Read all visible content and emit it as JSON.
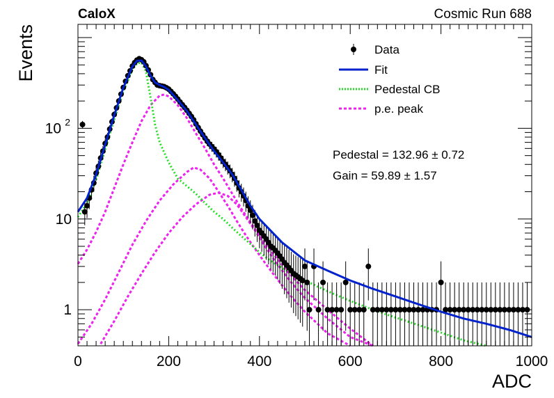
{
  "chart_data": {
    "type": "scatter",
    "experiment_label": "CaloX",
    "run_label": "Cosmic Run 688",
    "xlabel": "ADC",
    "ylabel": "Events",
    "xlim": [
      0,
      1000
    ],
    "ylim": [
      0.4,
      1400
    ],
    "yscale": "log",
    "x_ticks": [
      0,
      200,
      400,
      600,
      800,
      1000
    ],
    "x_tick_labels": [
      "0",
      "200",
      "400",
      "600",
      "800",
      "1000"
    ],
    "y_ticks": [
      1,
      10,
      100
    ],
    "y_tick_labels": [
      "1",
      "10",
      "10^2"
    ],
    "legend": {
      "placement": "top-right",
      "entries": [
        {
          "label": "Data",
          "style": "marker",
          "color": "#000000"
        },
        {
          "label": "Fit",
          "style": "line",
          "color": "#0022cc"
        },
        {
          "label": "Pedestal CB",
          "style": "dotted",
          "color": "#22dd22"
        },
        {
          "label": "p.e. peak",
          "style": "dashed",
          "color": "#ee22ee"
        }
      ]
    },
    "annotations": [
      {
        "text": "Pedestal = 132.96 ± 0.72"
      },
      {
        "text": "Gain = 59.89 ± 1.57"
      }
    ],
    "fit_params": {
      "pedestal": 132.96,
      "gain": 59.89
    },
    "data_points": [
      [
        10,
        110
      ],
      [
        15,
        12
      ],
      [
        20,
        14
      ],
      [
        25,
        17
      ],
      [
        30,
        21
      ],
      [
        35,
        25
      ],
      [
        40,
        32
      ],
      [
        45,
        38
      ],
      [
        50,
        47
      ],
      [
        55,
        56
      ],
      [
        60,
        68
      ],
      [
        65,
        80
      ],
      [
        70,
        98
      ],
      [
        75,
        118
      ],
      [
        80,
        142
      ],
      [
        85,
        168
      ],
      [
        90,
        200
      ],
      [
        95,
        238
      ],
      [
        100,
        282
      ],
      [
        105,
        330
      ],
      [
        110,
        380
      ],
      [
        115,
        430
      ],
      [
        120,
        485
      ],
      [
        125,
        530
      ],
      [
        130,
        565
      ],
      [
        135,
        585
      ],
      [
        140,
        570
      ],
      [
        145,
        540
      ],
      [
        150,
        490
      ],
      [
        155,
        440
      ],
      [
        160,
        390
      ],
      [
        165,
        345
      ],
      [
        170,
        320
      ],
      [
        175,
        300
      ],
      [
        180,
        295
      ],
      [
        185,
        292
      ],
      [
        190,
        288
      ],
      [
        195,
        280
      ],
      [
        200,
        270
      ],
      [
        205,
        255
      ],
      [
        210,
        240
      ],
      [
        215,
        225
      ],
      [
        220,
        210
      ],
      [
        225,
        195
      ],
      [
        230,
        182
      ],
      [
        235,
        170
      ],
      [
        240,
        158
      ],
      [
        245,
        146
      ],
      [
        250,
        135
      ],
      [
        255,
        124
      ],
      [
        260,
        112
      ],
      [
        265,
        102
      ],
      [
        270,
        93
      ],
      [
        275,
        85
      ],
      [
        280,
        78
      ],
      [
        285,
        72
      ],
      [
        290,
        67
      ],
      [
        295,
        63
      ],
      [
        300,
        59
      ],
      [
        305,
        55
      ],
      [
        310,
        51
      ],
      [
        315,
        47
      ],
      [
        320,
        43
      ],
      [
        325,
        40
      ],
      [
        330,
        37
      ],
      [
        335,
        34
      ],
      [
        340,
        31
      ],
      [
        345,
        28
      ],
      [
        350,
        25
      ],
      [
        355,
        22
      ],
      [
        360,
        20
      ],
      [
        365,
        18
      ],
      [
        370,
        16
      ],
      [
        375,
        14
      ],
      [
        380,
        12.5
      ],
      [
        385,
        11
      ],
      [
        390,
        9.5
      ],
      [
        395,
        8.5
      ],
      [
        400,
        7.5
      ],
      [
        405,
        7
      ],
      [
        410,
        6.5
      ],
      [
        415,
        6
      ],
      [
        420,
        5.5
      ],
      [
        425,
        5
      ],
      [
        430,
        4.8
      ],
      [
        435,
        4.5
      ],
      [
        440,
        4.2
      ],
      [
        445,
        3.9
      ],
      [
        450,
        3.6
      ],
      [
        455,
        3.3
      ],
      [
        460,
        3.1
      ],
      [
        465,
        2.9
      ],
      [
        470,
        2.7
      ],
      [
        475,
        2.5
      ],
      [
        480,
        2.4
      ],
      [
        485,
        2.3
      ],
      [
        490,
        2.2
      ],
      [
        495,
        2.1
      ],
      [
        500,
        3
      ],
      [
        505,
        2
      ],
      [
        510,
        1
      ],
      [
        520,
        3
      ],
      [
        530,
        1
      ],
      [
        540,
        2
      ],
      [
        550,
        1
      ],
      [
        560,
        1
      ],
      [
        570,
        1
      ],
      [
        580,
        1
      ],
      [
        590,
        2
      ],
      [
        600,
        1
      ],
      [
        610,
        1
      ],
      [
        620,
        1
      ],
      [
        630,
        1
      ],
      [
        640,
        3
      ],
      [
        650,
        1
      ],
      [
        660,
        1
      ],
      [
        670,
        1
      ],
      [
        680,
        1
      ],
      [
        690,
        1
      ],
      [
        700,
        1
      ],
      [
        710,
        1
      ],
      [
        720,
        1
      ],
      [
        730,
        1
      ],
      [
        740,
        1
      ],
      [
        750,
        1
      ],
      [
        760,
        1
      ],
      [
        770,
        1
      ],
      [
        780,
        1
      ],
      [
        790,
        1
      ],
      [
        800,
        2
      ],
      [
        810,
        1
      ],
      [
        820,
        1
      ],
      [
        830,
        1
      ],
      [
        840,
        1
      ],
      [
        850,
        1
      ],
      [
        860,
        1
      ],
      [
        870,
        1
      ],
      [
        880,
        1
      ],
      [
        890,
        1
      ],
      [
        900,
        1
      ],
      [
        910,
        1
      ],
      [
        920,
        1
      ],
      [
        930,
        1
      ],
      [
        940,
        1
      ],
      [
        950,
        1
      ],
      [
        960,
        1
      ],
      [
        970,
        1
      ],
      [
        980,
        1
      ],
      [
        990,
        1
      ]
    ],
    "fit_curve": [
      [
        0,
        12
      ],
      [
        20,
        17
      ],
      [
        40,
        31
      ],
      [
        60,
        66
      ],
      [
        80,
        140
      ],
      [
        100,
        280
      ],
      [
        120,
        480
      ],
      [
        130,
        555
      ],
      [
        140,
        560
      ],
      [
        150,
        480
      ],
      [
        160,
        380
      ],
      [
        170,
        320
      ],
      [
        180,
        300
      ],
      [
        190,
        285
      ],
      [
        200,
        265
      ],
      [
        220,
        205
      ],
      [
        240,
        155
      ],
      [
        260,
        110
      ],
      [
        280,
        78
      ],
      [
        300,
        56
      ],
      [
        320,
        42
      ],
      [
        340,
        31
      ],
      [
        360,
        21
      ],
      [
        380,
        14
      ],
      [
        400,
        10
      ],
      [
        450,
        5.5
      ],
      [
        500,
        3.5
      ],
      [
        550,
        2.7
      ],
      [
        600,
        2.1
      ],
      [
        650,
        1.7
      ],
      [
        700,
        1.4
      ],
      [
        750,
        1.15
      ],
      [
        800,
        0.95
      ],
      [
        850,
        0.8
      ],
      [
        900,
        0.7
      ],
      [
        950,
        0.6
      ],
      [
        1000,
        0.5
      ]
    ],
    "pedestal_cb": [
      [
        0,
        10.5
      ],
      [
        20,
        15
      ],
      [
        40,
        27
      ],
      [
        60,
        58
      ],
      [
        80,
        125
      ],
      [
        100,
        255
      ],
      [
        120,
        440
      ],
      [
        130,
        520
      ],
      [
        140,
        530
      ],
      [
        150,
        420
      ],
      [
        160,
        220
      ],
      [
        170,
        110
      ],
      [
        180,
        70
      ],
      [
        200,
        42
      ],
      [
        220,
        28
      ],
      [
        240,
        23
      ],
      [
        250,
        21
      ],
      [
        260,
        19
      ],
      [
        280,
        15
      ],
      [
        300,
        12
      ],
      [
        320,
        10
      ],
      [
        340,
        8
      ],
      [
        360,
        6.5
      ],
      [
        380,
        5.3
      ],
      [
        400,
        4.3
      ],
      [
        420,
        3.6
      ],
      [
        440,
        3.1
      ],
      [
        460,
        2.7
      ],
      [
        480,
        2.4
      ],
      [
        500,
        2.1
      ],
      [
        550,
        1.6
      ],
      [
        600,
        1.25
      ],
      [
        650,
        1.0
      ],
      [
        700,
        0.82
      ],
      [
        750,
        0.68
      ],
      [
        800,
        0.56
      ],
      [
        850,
        0.46
      ],
      [
        900,
        0.38
      ]
    ],
    "pe_peaks": [
      [
        [
          0,
          3.2
        ],
        [
          20,
          4.6
        ],
        [
          40,
          7.2
        ],
        [
          60,
          12
        ],
        [
          80,
          22
        ],
        [
          100,
          40
        ],
        [
          120,
          70
        ],
        [
          140,
          120
        ],
        [
          160,
          180
        ],
        [
          180,
          230
        ],
        [
          190,
          235
        ],
        [
          200,
          225
        ],
        [
          220,
          180
        ],
        [
          240,
          130
        ],
        [
          260,
          88
        ],
        [
          280,
          60
        ],
        [
          300,
          40
        ],
        [
          320,
          28
        ],
        [
          340,
          19
        ],
        [
          360,
          13
        ],
        [
          380,
          9.2
        ],
        [
          400,
          6.6
        ],
        [
          420,
          4.8
        ],
        [
          440,
          3.6
        ],
        [
          460,
          2.7
        ],
        [
          480,
          2.1
        ],
        [
          500,
          1.65
        ],
        [
          550,
          1.0
        ],
        [
          600,
          0.62
        ],
        [
          650,
          0.4
        ]
      ],
      [
        [
          0,
          0.42
        ],
        [
          30,
          0.7
        ],
        [
          60,
          1.3
        ],
        [
          90,
          2.6
        ],
        [
          120,
          5.2
        ],
        [
          150,
          9.5
        ],
        [
          180,
          16
        ],
        [
          210,
          24
        ],
        [
          240,
          33
        ],
        [
          255,
          37
        ],
        [
          270,
          35
        ],
        [
          290,
          28
        ],
        [
          310,
          20
        ],
        [
          330,
          14
        ],
        [
          350,
          9.5
        ],
        [
          370,
          6.6
        ],
        [
          390,
          4.7
        ],
        [
          410,
          3.4
        ],
        [
          430,
          2.5
        ],
        [
          450,
          1.85
        ],
        [
          470,
          1.4
        ],
        [
          500,
          0.95
        ],
        [
          550,
          0.55
        ],
        [
          600,
          0.33
        ]
      ],
      [
        [
          50,
          0.42
        ],
        [
          80,
          0.75
        ],
        [
          110,
          1.4
        ],
        [
          140,
          2.5
        ],
        [
          170,
          4.3
        ],
        [
          200,
          7.0
        ],
        [
          230,
          10.5
        ],
        [
          260,
          14.5
        ],
        [
          290,
          18.5
        ],
        [
          310,
          19.5
        ],
        [
          330,
          18
        ],
        [
          350,
          14.5
        ],
        [
          370,
          10.5
        ],
        [
          390,
          7.5
        ],
        [
          410,
          5.2
        ],
        [
          430,
          3.7
        ],
        [
          450,
          2.7
        ],
        [
          470,
          2.0
        ],
        [
          500,
          1.35
        ],
        [
          550,
          0.8
        ],
        [
          600,
          0.5
        ],
        [
          650,
          0.32
        ]
      ]
    ]
  }
}
